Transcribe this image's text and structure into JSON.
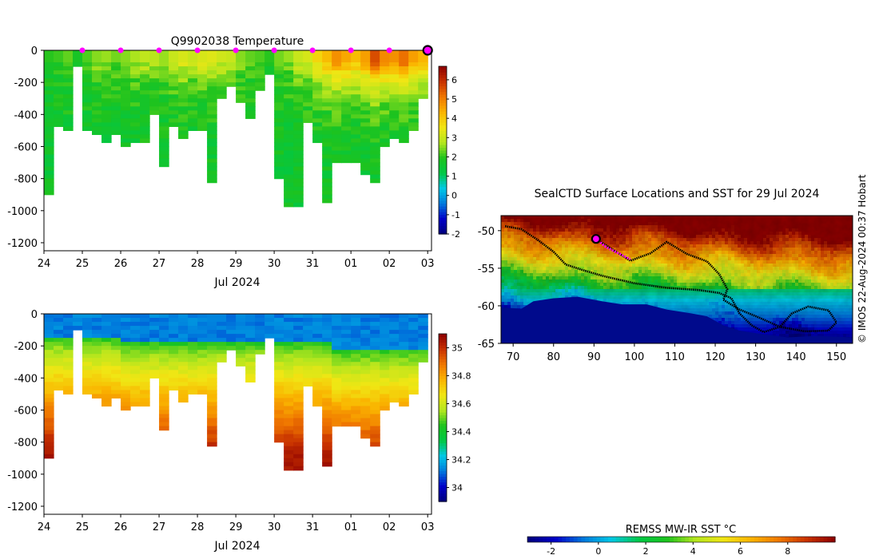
{
  "chart_data": [
    {
      "type": "heatmap",
      "title": "Q9902038  Temperature",
      "xlabel": "Jul 2024",
      "x_ticks": [
        "24",
        "25",
        "26",
        "27",
        "28",
        "29",
        "30",
        "31",
        "01",
        "02",
        "03"
      ],
      "xlim": [
        24,
        34.1
      ],
      "ylim": [
        -1250,
        0
      ],
      "y_ticks": [
        0,
        -200,
        -400,
        -600,
        -800,
        -1000,
        -1200
      ],
      "colorbar": {
        "range": [
          -2,
          6.7
        ],
        "ticks": [
          -2,
          -1,
          0,
          1,
          2,
          3,
          4,
          5,
          6
        ]
      },
      "colormap": [
        "#00007a",
        "#0000c8",
        "#0078dc",
        "#00c8e6",
        "#00c846",
        "#1ec31e",
        "#b4e61e",
        "#f0e614",
        "#fab400",
        "#f07800",
        "#c83200",
        "#8c0000"
      ],
      "surface_markers_x": [
        25,
        26,
        27,
        28,
        29,
        30,
        31,
        32,
        33
      ],
      "current_marker_x": 34,
      "marker_color": "#ff00ff",
      "profile_depths": [
        [
          24.0,
          880
        ],
        [
          24.25,
          460
        ],
        [
          24.5,
          480
        ],
        [
          24.75,
          100
        ],
        [
          25.0,
          500
        ],
        [
          25.25,
          510
        ],
        [
          25.5,
          560
        ],
        [
          25.75,
          520
        ],
        [
          26.0,
          580
        ],
        [
          26.25,
          570
        ],
        [
          26.5,
          560
        ],
        [
          26.75,
          400
        ],
        [
          27.0,
          720
        ],
        [
          27.25,
          470
        ],
        [
          27.5,
          550
        ],
        [
          27.75,
          480
        ],
        [
          28.0,
          490
        ],
        [
          28.25,
          820
        ],
        [
          28.5,
          280
        ],
        [
          28.75,
          210
        ],
        [
          29.0,
          320
        ],
        [
          29.25,
          420
        ],
        [
          29.5,
          240
        ],
        [
          29.75,
          140
        ],
        [
          30.0,
          780
        ],
        [
          30.25,
          970
        ],
        [
          30.5,
          960
        ],
        [
          30.75,
          440
        ],
        [
          31.0,
          560
        ],
        [
          31.25,
          940
        ],
        [
          31.5,
          690
        ],
        [
          31.75,
          700
        ],
        [
          32.0,
          680
        ],
        [
          32.25,
          770
        ],
        [
          32.5,
          810
        ],
        [
          32.75,
          600
        ],
        [
          33.0,
          550
        ],
        [
          33.25,
          560
        ],
        [
          33.5,
          490
        ],
        [
          33.75,
          300
        ]
      ],
      "surface_values": [
        2.0,
        2.1,
        2.3,
        1.8,
        2.2,
        2.5,
        2.6,
        2.4,
        2.5,
        2.7,
        2.9,
        2.8,
        2.6,
        3.0,
        3.2,
        3.0,
        3.2,
        3.3,
        3.1,
        3.0,
        2.5,
        2.3,
        2.2,
        2.0,
        2.4,
        2.6,
        3.0,
        3.2,
        3.8,
        4.2,
        4.8,
        4.5,
        4.2,
        4.6,
        5.6,
        4.9,
        4.8,
        5.2,
        4.6,
        4.3
      ]
    },
    {
      "type": "heatmap",
      "title": "",
      "xlabel": "Jul 2024",
      "x_ticks": [
        "24",
        "25",
        "26",
        "27",
        "28",
        "29",
        "30",
        "31",
        "01",
        "02",
        "03"
      ],
      "xlim": [
        24,
        34.1
      ],
      "ylim": [
        -1250,
        0
      ],
      "y_ticks": [
        0,
        -200,
        -400,
        -600,
        -800,
        -1000,
        -1200
      ],
      "colorbar": {
        "range": [
          33.9,
          35.1
        ],
        "ticks": [
          34,
          34.2,
          34.4,
          34.6,
          34.8,
          35
        ]
      },
      "colormap": [
        "#00007a",
        "#0000c8",
        "#0078dc",
        "#00c8e6",
        "#00c846",
        "#1ec31e",
        "#b4e61e",
        "#f0e614",
        "#fab400",
        "#f07800",
        "#c83200",
        "#8c0000"
      ]
    },
    {
      "type": "heatmap",
      "title": "SealCTD Surface Locations and SST for 29 Jul 2024",
      "xlim": [
        67,
        154
      ],
      "ylim": [
        -65,
        -48
      ],
      "x_ticks": [
        70,
        80,
        90,
        100,
        110,
        120,
        130,
        140,
        150
      ],
      "y_ticks": [
        -50,
        -55,
        -60,
        -65
      ],
      "colorbar_label": "REMSS MW-IR SST °C",
      "colorbar": {
        "range": [
          -3,
          10
        ],
        "ticks": [
          -2,
          0,
          2,
          4,
          6,
          8
        ]
      },
      "colormap": [
        "#00007a",
        "#0000c8",
        "#0078dc",
        "#00c8e6",
        "#00c846",
        "#1ec31e",
        "#b4e61e",
        "#f0e614",
        "#fab400",
        "#f07800",
        "#c83200",
        "#8c0000"
      ],
      "track": [
        [
          68,
          -49.4
        ],
        [
          72,
          -49.8
        ],
        [
          76,
          -51.2
        ],
        [
          80,
          -52.8
        ],
        [
          83,
          -54.5
        ],
        [
          87,
          -55.2
        ],
        [
          92,
          -56.0
        ],
        [
          100,
          -57.0
        ],
        [
          108,
          -57.6
        ],
        [
          116,
          -57.9
        ],
        [
          121,
          -58.3
        ],
        [
          124,
          -59.0
        ],
        [
          126,
          -61.0
        ],
        [
          129,
          -62.6
        ],
        [
          132,
          -63.5
        ],
        [
          136,
          -62.8
        ],
        [
          139,
          -61.0
        ],
        [
          143,
          -60.1
        ],
        [
          148,
          -60.6
        ],
        [
          150,
          -62.2
        ],
        [
          148,
          -63.3
        ],
        [
          142,
          -63.4
        ],
        [
          136,
          -62.8
        ],
        [
          131,
          -61.6
        ],
        [
          126,
          -60.5
        ],
        [
          122,
          -59.2
        ],
        [
          123,
          -57.8
        ],
        [
          121,
          -55.8
        ],
        [
          118,
          -54.1
        ],
        [
          113,
          -53.1
        ],
        [
          108,
          -51.5
        ],
        [
          104,
          -53.0
        ],
        [
          99,
          -54.0
        ],
        [
          94,
          -52.3
        ],
        [
          90.5,
          -51.1
        ]
      ],
      "recent_track": [
        [
          90.5,
          -51.1
        ],
        [
          93,
          -52.2
        ],
        [
          96,
          -53.0
        ],
        [
          99,
          -53.8
        ]
      ],
      "current_location": [
        90.5,
        -51.1
      ],
      "marker_color": "#ff00ff"
    }
  ],
  "credit": "© IMOS 22-Aug-2024 00:37 Hobart"
}
